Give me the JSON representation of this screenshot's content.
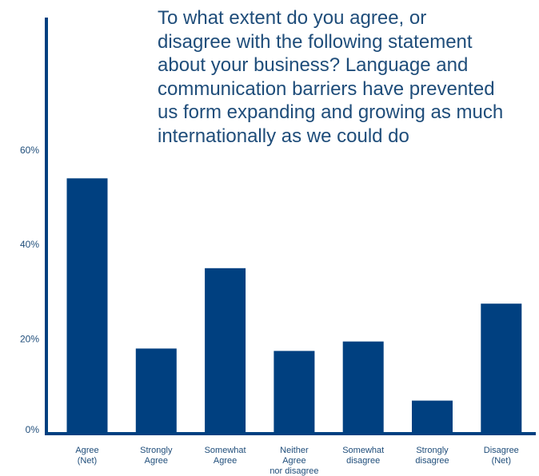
{
  "chart_data": {
    "type": "bar",
    "title": "To what extent do you agree, or\ndisagree with the following statement\nabout your business? Language and\ncommunication barriers have prevented\nus form expanding and growing as much\ninternationally as we could do",
    "categories": [
      [
        "Agree",
        "(Net)"
      ],
      [
        "Strongly",
        "Agree"
      ],
      [
        "Somewhat",
        "Agree"
      ],
      [
        "Neither",
        "Agree",
        "nor disagree"
      ],
      [
        "Somewhat",
        "disagree"
      ],
      [
        "Strongly",
        "disagree"
      ],
      [
        "Disagree",
        "(Net)"
      ]
    ],
    "values": [
      54,
      18,
      35,
      17.5,
      19.5,
      7,
      27.5
    ],
    "yticks": [
      {
        "value": 0,
        "label": "0%"
      },
      {
        "value": 20,
        "label": "20%"
      },
      {
        "value": 40,
        "label": "40%"
      },
      {
        "value": 60,
        "label": "60%"
      }
    ],
    "ylim": [
      0,
      88
    ],
    "xlabel": "",
    "ylabel": "",
    "grid": false,
    "bar_color": "#004080",
    "axis_color": "#004080",
    "text_color": "#1f4d7a"
  }
}
